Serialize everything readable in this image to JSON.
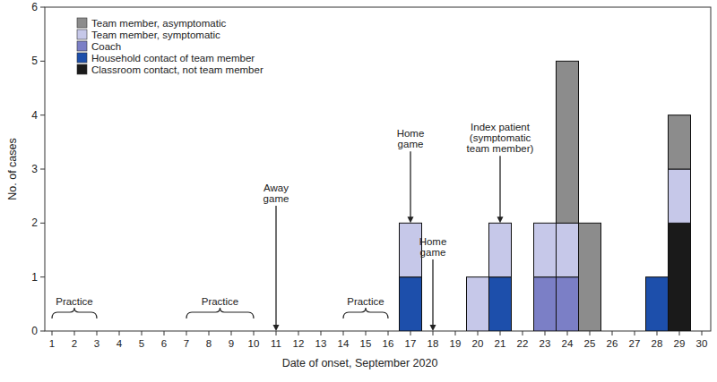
{
  "chart_data": {
    "type": "bar",
    "stacked": true,
    "x_label": "Date of onset, September 2020",
    "y_label": "No. of cases",
    "categories": [
      "1",
      "2",
      "3",
      "4",
      "5",
      "6",
      "7",
      "8",
      "9",
      "10",
      "11",
      "12",
      "13",
      "14",
      "15",
      "16",
      "17",
      "18",
      "19",
      "20",
      "21",
      "22",
      "23",
      "24",
      "25",
      "26",
      "27",
      "28",
      "29",
      "30"
    ],
    "ylim": [
      0,
      6
    ],
    "yticks": [
      0,
      1,
      2,
      3,
      4,
      5,
      6
    ],
    "legend": "top-left",
    "series": [
      {
        "name": "Team member, asymptomatic",
        "color": "#8c8c8c",
        "values": [
          0,
          0,
          0,
          0,
          0,
          0,
          0,
          0,
          0,
          0,
          0,
          0,
          0,
          0,
          0,
          0,
          0,
          0,
          0,
          0,
          0,
          0,
          0,
          3,
          2,
          0,
          0,
          0,
          1,
          0
        ]
      },
      {
        "name": "Team member, symptomatic",
        "color": "#c6c8e9",
        "values": [
          0,
          0,
          0,
          0,
          0,
          0,
          0,
          0,
          0,
          0,
          0,
          0,
          0,
          0,
          0,
          0,
          1,
          0,
          0,
          1,
          1,
          0,
          1,
          1,
          0,
          0,
          0,
          0,
          1,
          0
        ]
      },
      {
        "name": "Coach",
        "color": "#7b7fc6",
        "values": [
          0,
          0,
          0,
          0,
          0,
          0,
          0,
          0,
          0,
          0,
          0,
          0,
          0,
          0,
          0,
          0,
          0,
          0,
          0,
          0,
          0,
          0,
          1,
          1,
          0,
          0,
          0,
          0,
          0,
          0
        ]
      },
      {
        "name": "Household contact of team member",
        "color": "#1d4fab",
        "values": [
          0,
          0,
          0,
          0,
          0,
          0,
          0,
          0,
          0,
          0,
          0,
          0,
          0,
          0,
          0,
          0,
          1,
          0,
          0,
          0,
          1,
          0,
          0,
          0,
          0,
          0,
          0,
          1,
          0,
          0
        ]
      },
      {
        "name": "Classroom contact, not team member",
        "color": "#1a1a1a",
        "values": [
          0,
          0,
          0,
          0,
          0,
          0,
          0,
          0,
          0,
          0,
          0,
          0,
          0,
          0,
          0,
          0,
          0,
          0,
          0,
          0,
          0,
          0,
          0,
          0,
          0,
          0,
          0,
          0,
          2,
          0
        ]
      }
    ],
    "annotations": [
      {
        "lines": [
          "Home",
          "game"
        ],
        "x": "17"
      },
      {
        "lines": [
          "Away",
          "game"
        ],
        "x": "11"
      },
      {
        "lines": [
          "Home",
          "game"
        ],
        "x": "18"
      },
      {
        "lines": [
          "Index patient",
          "(symptomatic",
          "team member)"
        ],
        "x": "21"
      }
    ],
    "periods": [
      {
        "text": "Practice",
        "from": "1",
        "to": "3"
      },
      {
        "text": "Practice",
        "from": "7",
        "to": "10"
      },
      {
        "text": "Practice",
        "from": "14",
        "to": "16"
      }
    ]
  }
}
